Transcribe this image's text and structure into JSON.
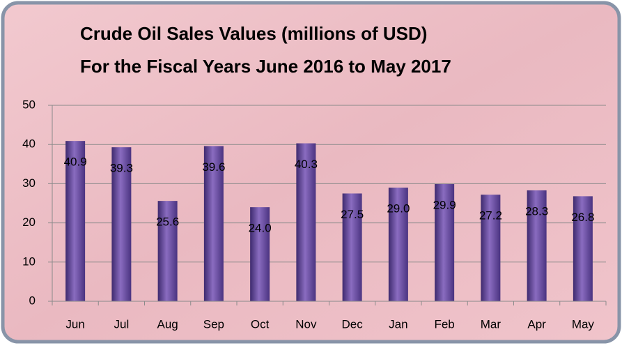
{
  "chart_data": {
    "type": "bar",
    "title": [
      "Crude Oil Sales Values (millions of USD)",
      "For the Fiscal Years June 2016 to May 2017"
    ],
    "categories": [
      "Jun",
      "Jul",
      "Aug",
      "Sep",
      "Oct",
      "Nov",
      "Dec",
      "Jan",
      "Feb",
      "Mar",
      "Apr",
      "May"
    ],
    "values": [
      40.9,
      39.3,
      25.6,
      39.6,
      24.0,
      40.3,
      27.5,
      29.0,
      29.9,
      27.2,
      28.3,
      26.8
    ],
    "value_labels": [
      "40.9",
      "39.3",
      "25.6",
      "39.6",
      "24.0",
      "40.3",
      "27.5",
      "29.0",
      "29.9",
      "27.2",
      "28.3",
      "26.8"
    ],
    "color": "#6a4c9c",
    "ylim": [
      0,
      50
    ],
    "yticks": [
      0,
      10,
      20,
      30,
      40,
      50
    ],
    "grid": true
  }
}
